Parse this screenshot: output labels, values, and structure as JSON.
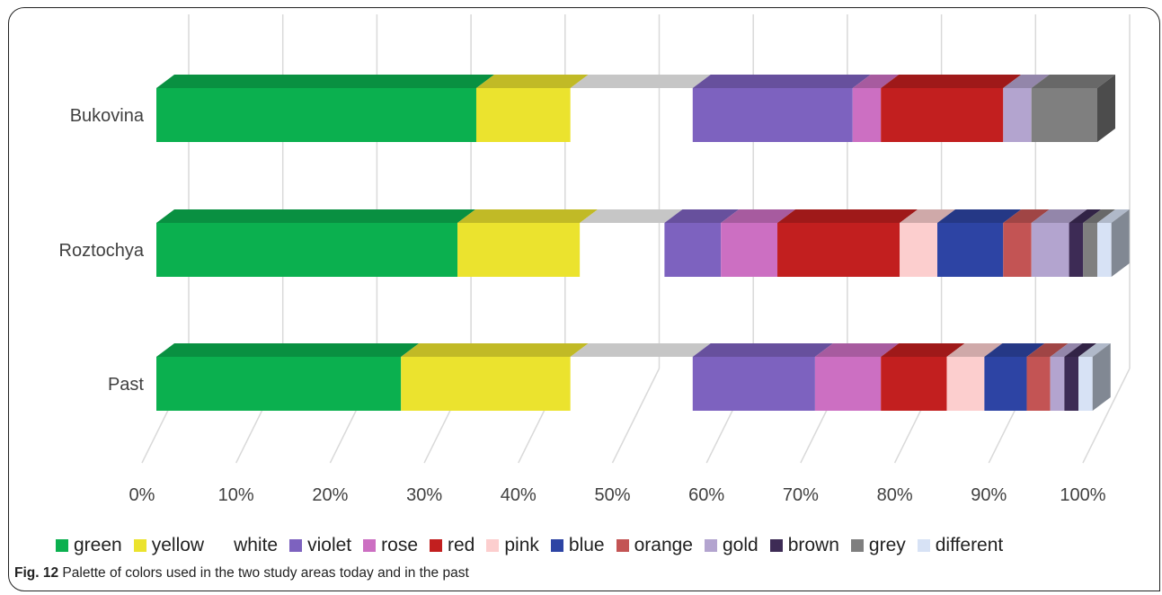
{
  "chart_data": {
    "type": "bar",
    "orientation": "horizontal",
    "stacked": "100%",
    "style": "3d",
    "categories": [
      "Bukovina",
      "Roztochya",
      "Past"
    ],
    "series": [
      {
        "name": "green",
        "color": "#0bb04f",
        "values": [
          34,
          32,
          26
        ]
      },
      {
        "name": "yellow",
        "color": "#ebe32e",
        "values": [
          10,
          13,
          18
        ]
      },
      {
        "name": "white",
        "color": "#ffffff",
        "values": [
          13,
          9,
          13
        ]
      },
      {
        "name": "violet",
        "color": "#7d62bf",
        "values": [
          17,
          6,
          13
        ]
      },
      {
        "name": "rose",
        "color": "#cc6fc2",
        "values": [
          3,
          6,
          7
        ]
      },
      {
        "name": "red",
        "color": "#c21f1f",
        "values": [
          13,
          13,
          7
        ]
      },
      {
        "name": "pink",
        "color": "#fccece",
        "values": [
          0,
          4,
          4
        ]
      },
      {
        "name": "blue",
        "color": "#2d44a4",
        "values": [
          0,
          7,
          4.5
        ]
      },
      {
        "name": "orange",
        "color": "#c35454",
        "values": [
          0,
          3,
          2.5
        ]
      },
      {
        "name": "gold",
        "color": "#b3a4cf",
        "values": [
          3,
          4,
          1.5
        ]
      },
      {
        "name": "brown",
        "color": "#3d2b55",
        "values": [
          0,
          1.5,
          1.5
        ]
      },
      {
        "name": "grey",
        "color": "#7f7f7f",
        "values": [
          7,
          1.5,
          0
        ]
      },
      {
        "name": "different",
        "color": "#d7e2f5",
        "values": [
          0,
          1.5,
          1.5
        ]
      }
    ],
    "xlim": [
      0,
      100
    ],
    "x_ticks": [
      "0%",
      "10%",
      "20%",
      "30%",
      "40%",
      "50%",
      "60%",
      "70%",
      "80%",
      "90%",
      "100%"
    ],
    "grid": true,
    "legend_position": "bottom"
  },
  "caption": {
    "label": "Fig. 12",
    "text": " Palette of colors used in the two study areas today and in the past"
  }
}
